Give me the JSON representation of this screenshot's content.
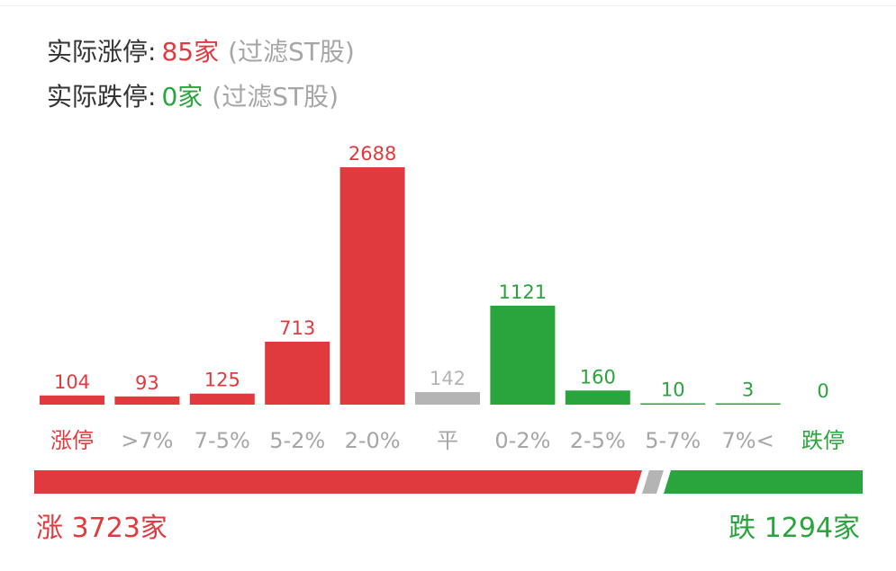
{
  "stats": {
    "limit_up": {
      "label": "实际涨停:",
      "value": "85",
      "unit": "家",
      "note": "(过滤ST股)"
    },
    "limit_down": {
      "label": "实际跌停:",
      "value": "0",
      "unit": "家",
      "note": "(过滤ST股)"
    }
  },
  "colors": {
    "up": "#e03a3e",
    "down": "#2aa43c",
    "flat": "#b4b4b4",
    "text": "#333333",
    "muted": "#a6a6a6"
  },
  "chart_data": {
    "type": "bar",
    "categories": [
      "涨停",
      ">7%",
      "7-5%",
      "5-2%",
      "2-0%",
      "平",
      "0-2%",
      "2-5%",
      "5-7%",
      "7%<",
      "跌停"
    ],
    "values": [
      104,
      93,
      125,
      713,
      2688,
      142,
      1121,
      160,
      10,
      3,
      0
    ],
    "groups": [
      "up",
      "up",
      "up",
      "up",
      "up",
      "flat",
      "down",
      "down",
      "down",
      "down",
      "down"
    ]
  },
  "ratio_bar": {
    "up_count": 3723,
    "down_count": 1294
  },
  "summary": {
    "up": {
      "prefix": "涨",
      "value": "3723",
      "unit": "家"
    },
    "down": {
      "prefix": "跌",
      "value": "1294",
      "unit": "家"
    }
  }
}
